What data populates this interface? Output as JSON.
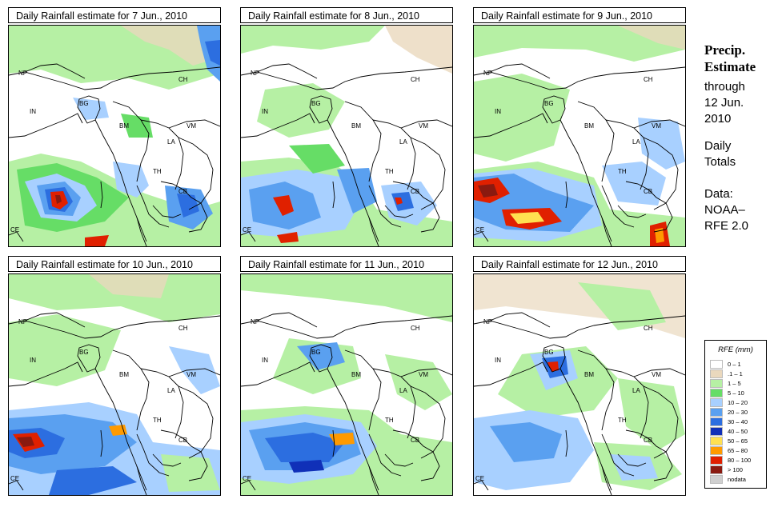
{
  "panels": [
    {
      "title": "Daily Rainfall estimate for  7 Jun., 2010"
    },
    {
      "title": "Daily Rainfall estimate for  8 Jun., 2010"
    },
    {
      "title": "Daily Rainfall estimate for  9 Jun., 2010"
    },
    {
      "title": "Daily Rainfall estimate for  10 Jun., 2010"
    },
    {
      "title": "Daily Rainfall estimate for  11 Jun., 2010"
    },
    {
      "title": "Daily Rainfall estimate for  12 Jun., 2010"
    }
  ],
  "country_labels": {
    "np": "NP",
    "in": "IN",
    "bg": "BG",
    "ch": "CH",
    "bm": "BM",
    "vm": "VM",
    "la": "LA",
    "th": "TH",
    "cb": "CB",
    "ce": "CE"
  },
  "sidebar": {
    "title_line1": "Precip.",
    "title_line2": "Estimate",
    "through": "through",
    "date_line1": "12 Jun.",
    "date_line2": "2010",
    "daily_line1": "Daily",
    "daily_line2": "Totals",
    "data_line1": "Data:",
    "data_line2": "NOAA–",
    "data_line3": "RFE 2.0"
  },
  "legend": {
    "title": "RFE (mm)",
    "items": [
      {
        "label": "0 – 1",
        "color": "#ffffff"
      },
      {
        "label": ".1 – 1",
        "color": "#ead8bd"
      },
      {
        "label": "1 – 5",
        "color": "#b6f0a4"
      },
      {
        "label": "5 – 10",
        "color": "#66dd66"
      },
      {
        "label": "10 – 20",
        "color": "#a8d0ff"
      },
      {
        "label": "20 – 30",
        "color": "#5aa0f0"
      },
      {
        "label": "30 – 40",
        "color": "#2c6ee0"
      },
      {
        "label": "40 – 50",
        "color": "#1030b8"
      },
      {
        "label": "50 – 65",
        "color": "#ffe050"
      },
      {
        "label": "65 – 80",
        "color": "#ff9a00"
      },
      {
        "label": "80 – 100",
        "color": "#e02000"
      },
      {
        "label": "> 100",
        "color": "#8a1a10"
      },
      {
        "label": "nodata",
        "color": "#cfcfcf"
      }
    ]
  }
}
